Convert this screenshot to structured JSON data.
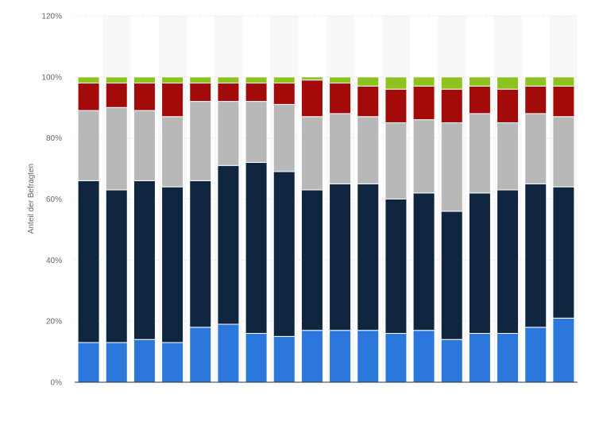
{
  "chart_data": {
    "type": "bar",
    "stacked": true,
    "title": "",
    "xlabel": "",
    "ylabel": "Anteil der Befragten",
    "ylim": [
      0,
      120
    ],
    "yticks": [
      0,
      20,
      40,
      60,
      80,
      100,
      120
    ],
    "ytick_labels": [
      "0%",
      "20%",
      "40%",
      "60%",
      "80%",
      "100%",
      "120%"
    ],
    "grid": true,
    "legend": "none",
    "categories": [
      "",
      "",
      "",
      "",
      "",
      "",
      "",
      "",
      "",
      "",
      "",
      "",
      "",
      "",
      "",
      "",
      "",
      ""
    ],
    "series": [
      {
        "color": "#2b77db",
        "values": [
          13,
          13,
          14,
          13,
          18,
          19,
          16,
          15,
          17,
          17,
          17,
          16,
          17,
          14,
          16,
          16,
          18,
          21
        ]
      },
      {
        "color": "#0f2540",
        "values": [
          53,
          50,
          52,
          51,
          48,
          52,
          56,
          54,
          46,
          48,
          48,
          44,
          45,
          42,
          46,
          47,
          47,
          43
        ]
      },
      {
        "color": "#b8b8b8",
        "values": [
          23,
          27,
          23,
          23,
          26,
          21,
          20,
          22,
          24,
          23,
          22,
          25,
          24,
          29,
          26,
          22,
          23,
          23
        ]
      },
      {
        "color": "#a30a0a",
        "values": [
          9,
          8,
          9,
          11,
          6,
          6,
          6,
          7,
          12,
          10,
          10,
          11,
          11,
          11,
          9,
          11,
          9,
          10
        ]
      },
      {
        "color": "#8dc21f",
        "values": [
          2,
          2,
          2,
          2,
          2,
          2,
          2,
          2,
          1,
          2,
          3,
          4,
          3,
          4,
          3,
          4,
          3,
          3
        ]
      }
    ]
  }
}
